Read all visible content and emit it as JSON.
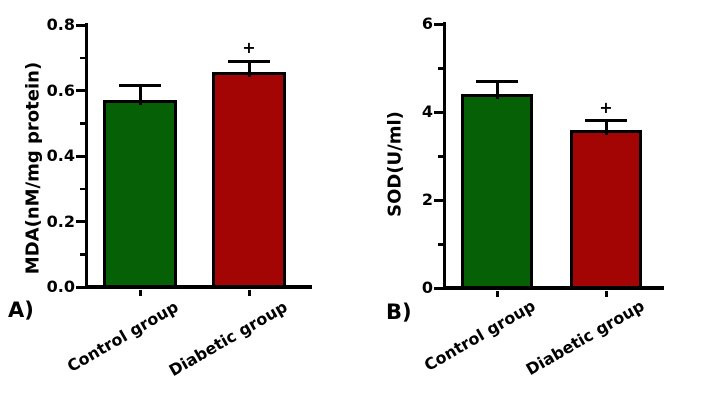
{
  "figure": {
    "background_color": "#ffffff",
    "axis_color": "#000000"
  },
  "chart_data": [
    {
      "type": "bar",
      "panel_label": "A)",
      "title": "",
      "xlabel": "",
      "ylabel": "MDA(nM/mg protein)",
      "ylim": [
        0,
        0.8
      ],
      "ytick_step": 0.2,
      "yminor_step": 0.1,
      "ytick_labels": [
        "0.0",
        "0.2",
        "0.4",
        "0.6",
        "0.8"
      ],
      "grid": false,
      "legend": "none",
      "categories": [
        "Control group",
        "Diabetic group"
      ],
      "values": [
        0.57,
        0.655
      ],
      "error_plus": [
        0.045,
        0.035
      ],
      "annotations": [
        "",
        "+"
      ],
      "bar_colors": [
        "#066106",
        "#a30505"
      ],
      "bar_border_color": "#000000"
    },
    {
      "type": "bar",
      "panel_label": "B)",
      "title": "",
      "xlabel": "",
      "ylabel": "SOD(U/ml)",
      "ylim": [
        0,
        6
      ],
      "ytick_step": 2,
      "yminor_step": 1,
      "ytick_labels": [
        "0",
        "2",
        "4",
        "6"
      ],
      "grid": false,
      "legend": "none",
      "categories": [
        "Control group",
        "Diabetic group"
      ],
      "values": [
        4.4,
        3.6
      ],
      "error_plus": [
        0.3,
        0.2
      ],
      "annotations": [
        "",
        "+"
      ],
      "bar_colors": [
        "#066106",
        "#a30505"
      ],
      "bar_border_color": "#000000"
    }
  ]
}
